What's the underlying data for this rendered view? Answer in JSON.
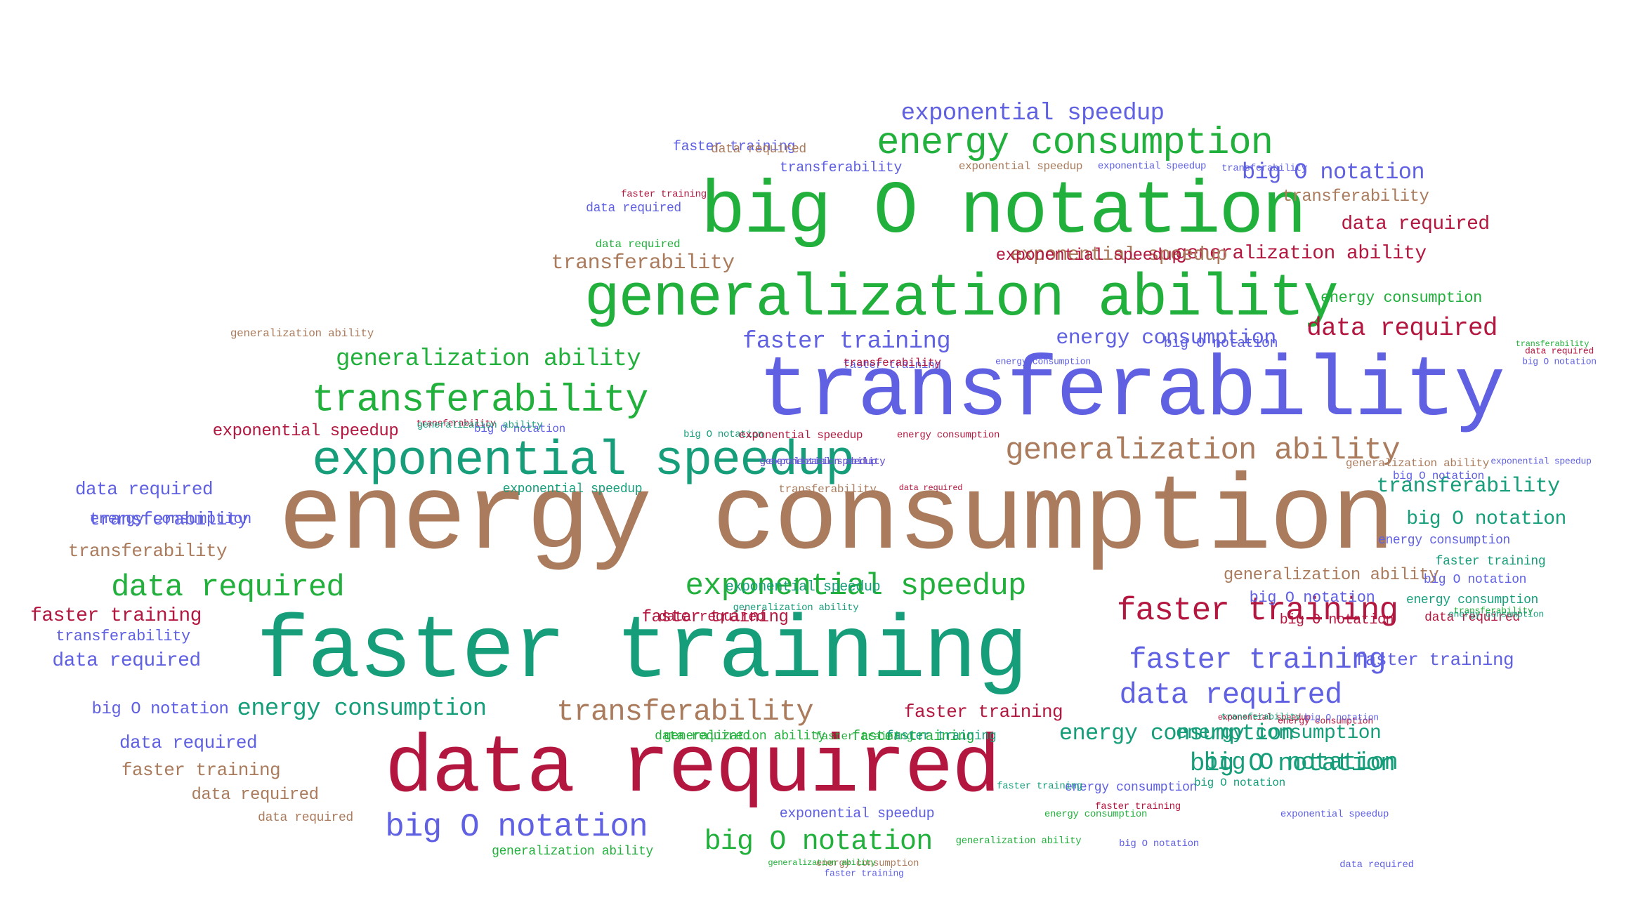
{
  "palette": {
    "green": "#22b03c",
    "teal": "#169e7b",
    "blue": "#5f60e2",
    "brown": "#aa7b5c",
    "crimson": "#b3173f"
  },
  "words": [
    {
      "text": "energy consumption",
      "color": "brown"
    },
    {
      "text": "transferability",
      "color": "blue"
    },
    {
      "text": "faster training",
      "color": "teal"
    },
    {
      "text": "data required",
      "color": "crimson"
    },
    {
      "text": "big O notation",
      "color": "green"
    },
    {
      "text": "generalization ability",
      "color": "green"
    },
    {
      "text": "exponential speedup",
      "color": "teal"
    },
    {
      "text": "energy consumption",
      "color": "green"
    },
    {
      "text": "transferability",
      "color": "green"
    },
    {
      "text": "generalization ability",
      "color": "brown"
    },
    {
      "text": "exponential speedup",
      "color": "green"
    },
    {
      "text": "faster training",
      "color": "crimson"
    },
    {
      "text": "data required",
      "color": "green"
    },
    {
      "text": "transferability",
      "color": "brown"
    },
    {
      "text": "big O notation",
      "color": "blue"
    },
    {
      "text": "big O notation",
      "color": "green"
    },
    {
      "text": "faster training",
      "color": "blue"
    },
    {
      "text": "data required",
      "color": "blue"
    },
    {
      "text": "exponential speedup",
      "color": "blue"
    },
    {
      "text": "generalization ability",
      "color": "green"
    },
    {
      "text": "energy consumption",
      "color": "teal"
    },
    {
      "text": "faster training",
      "color": "blue"
    },
    {
      "text": "energy consumption",
      "color": "blue"
    },
    {
      "text": "data required",
      "color": "crimson"
    },
    {
      "text": "big O notation",
      "color": "teal"
    },
    {
      "text": "energy consumption",
      "color": "teal"
    },
    {
      "text": "transferability",
      "color": "teal"
    },
    {
      "text": "big O notation",
      "color": "teal"
    },
    {
      "text": "exponential speedup",
      "color": "crimson"
    },
    {
      "text": "generalization ability",
      "color": "crimson"
    },
    {
      "text": "data required",
      "color": "crimson"
    },
    {
      "text": "transferability",
      "color": "brown"
    },
    {
      "text": "exponential speedup",
      "color": "brown"
    },
    {
      "text": "data required",
      "color": "blue"
    },
    {
      "text": "faster training",
      "color": "crimson"
    },
    {
      "text": "big O notation",
      "color": "blue"
    },
    {
      "text": "data required",
      "color": "blue"
    },
    {
      "text": "transferability",
      "color": "blue"
    },
    {
      "text": "transferability",
      "color": "brown"
    },
    {
      "text": "faster training",
      "color": "brown"
    },
    {
      "text": "data required",
      "color": "blue"
    },
    {
      "text": "big O notation",
      "color": "teal"
    },
    {
      "text": "faster training",
      "color": "blue"
    },
    {
      "text": "transferability",
      "color": "brown"
    },
    {
      "text": "energy consumption",
      "color": "teal"
    },
    {
      "text": "data required",
      "color": "brown"
    },
    {
      "text": "faster training",
      "color": "crimson"
    },
    {
      "text": "generalization ability",
      "color": "brown"
    },
    {
      "text": "exponential speedup",
      "color": "crimson"
    },
    {
      "text": "big O notation",
      "color": "blue"
    },
    {
      "text": "big O notation",
      "color": "blue"
    },
    {
      "text": "faster training",
      "color": "crimson"
    },
    {
      "text": "transferability",
      "color": "blue"
    },
    {
      "text": "energy consumption",
      "color": "blue"
    },
    {
      "text": "exponential speedup",
      "color": "teal"
    },
    {
      "text": "big O notation",
      "color": "crimson"
    },
    {
      "text": "data required",
      "color": "crimson"
    },
    {
      "text": "faster training",
      "color": "green"
    },
    {
      "text": "data required",
      "color": "brown"
    },
    {
      "text": "energy consumption",
      "color": "blue"
    },
    {
      "text": "big O notation",
      "color": "blue"
    },
    {
      "text": "generalization ability",
      "color": "green"
    },
    {
      "text": "exponential speedup",
      "color": "blue"
    },
    {
      "text": "transferability",
      "color": "blue"
    },
    {
      "text": "faster training",
      "color": "blue"
    },
    {
      "text": "big O notation",
      "color": "teal"
    },
    {
      "text": "data required",
      "color": "green"
    },
    {
      "text": "energy consumption",
      "color": "teal"
    },
    {
      "text": "transferability",
      "color": "crimson"
    },
    {
      "text": "big O notation",
      "color": "blue"
    },
    {
      "text": "faster training",
      "color": "teal"
    },
    {
      "text": "data required",
      "color": "crimson"
    },
    {
      "text": "exponential speedup",
      "color": "brown"
    },
    {
      "text": "data required",
      "color": "brown"
    },
    {
      "text": "transferability",
      "color": "green"
    },
    {
      "text": "energy consumption",
      "color": "green"
    },
    {
      "text": "generalization ability",
      "color": "green"
    },
    {
      "text": "data required",
      "color": "green"
    },
    {
      "text": "faster training",
      "color": "green"
    },
    {
      "text": "big O notation",
      "color": "blue"
    },
    {
      "text": "generalization ability",
      "color": "brown"
    },
    {
      "text": "energy consumption",
      "color": "crimson"
    },
    {
      "text": "exponential speedup",
      "color": "blue"
    },
    {
      "text": "energy consumption",
      "color": "blue"
    },
    {
      "text": "transferability",
      "color": "brown"
    },
    {
      "text": "faster training",
      "color": "teal"
    },
    {
      "text": "generalization ability",
      "color": "brown"
    },
    {
      "text": "big O notation",
      "color": "blue"
    },
    {
      "text": "faster training",
      "color": "blue"
    },
    {
      "text": "exponential speedup",
      "color": "teal"
    },
    {
      "text": "transferability",
      "color": "blue"
    },
    {
      "text": "data required",
      "color": "blue"
    },
    {
      "text": "generalization ability",
      "color": "teal"
    },
    {
      "text": "energy consumption",
      "color": "teal"
    },
    {
      "text": "transferability",
      "color": "crimson"
    },
    {
      "text": "big O notation",
      "color": "teal"
    },
    {
      "text": "exponential speedup",
      "color": "blue"
    },
    {
      "text": "energy consumption",
      "color": "green"
    },
    {
      "text": "faster training",
      "color": "teal"
    },
    {
      "text": "big O notation",
      "color": "blue"
    },
    {
      "text": "exponential speedup",
      "color": "crimson"
    },
    {
      "text": "data required",
      "color": "blue"
    },
    {
      "text": "faster training",
      "color": "crimson"
    },
    {
      "text": "generalization ability",
      "color": "green"
    },
    {
      "text": "data required",
      "color": "crimson"
    },
    {
      "text": "energy consumption",
      "color": "crimson"
    },
    {
      "text": "big O notation",
      "color": "blue"
    },
    {
      "text": "transferability",
      "color": "green"
    },
    {
      "text": "generalization ability",
      "color": "teal"
    },
    {
      "text": "faster training",
      "color": "crimson"
    },
    {
      "text": "exponential speedup",
      "color": "crimson"
    },
    {
      "text": "data required",
      "color": "crimson"
    },
    {
      "text": "energy consumption",
      "color": "brown"
    },
    {
      "text": "generalization ability",
      "color": "green"
    },
    {
      "text": "transferability",
      "color": "teal"
    },
    {
      "text": "big O notation",
      "color": "blue"
    },
    {
      "text": "faster training",
      "color": "blue"
    },
    {
      "text": "exponential speedup",
      "color": "blue"
    },
    {
      "text": "energy consumption",
      "color": "blue"
    },
    {
      "text": "generalization ability",
      "color": "crimson"
    },
    {
      "text": "exponential speedup",
      "color": "crimson"
    },
    {
      "text": "generalization ability",
      "color": "blue"
    },
    {
      "text": "exponential speedup",
      "color": "blue"
    }
  ]
}
